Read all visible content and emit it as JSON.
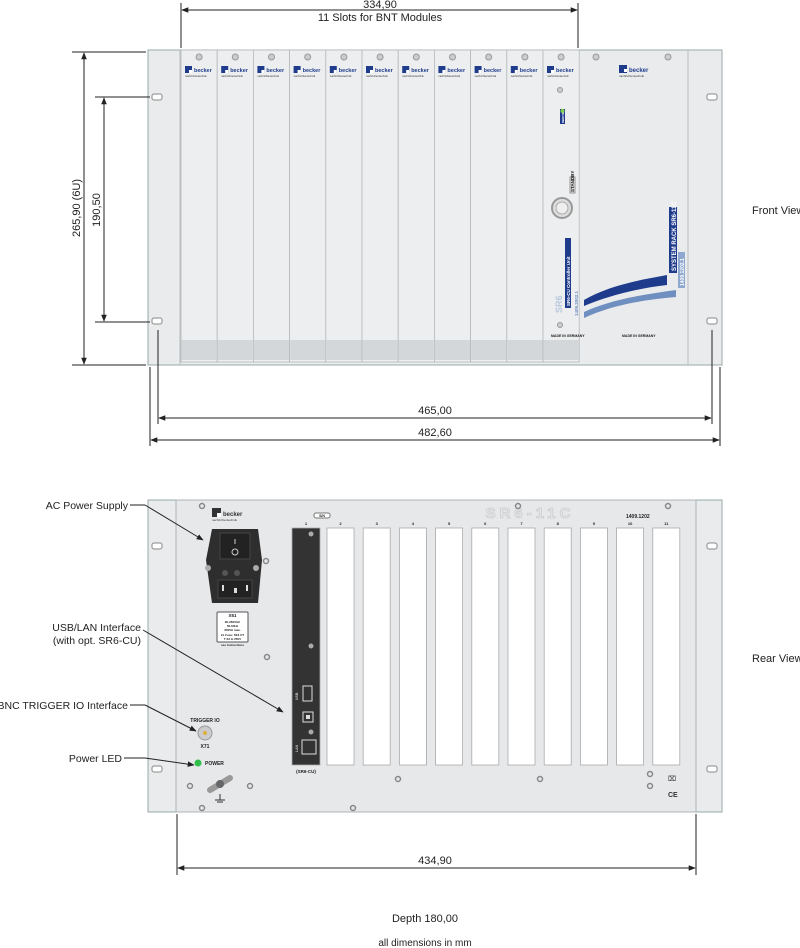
{
  "front": {
    "view_label": "Front View",
    "slots_width": "334,90",
    "slots_caption": "11 Slots for BNT Modules",
    "height_total": "265,90 (6U)",
    "height_mount": "190,50",
    "width_mount": "465,00",
    "width_total": "482,60",
    "logo_name": "becker",
    "logo_sub": "nachrichtentechnik",
    "controller": {
      "standby_label": "STANDBY",
      "model_label": "SR6",
      "unit_label": "SR6-CU  Controller Unit",
      "part_number": "1409.2002.1",
      "made_in": "MADE IN GERMANY",
      "status_label": "REMOTE"
    },
    "rack_panel": {
      "title": "SYSTEM RACK  SR6-11C",
      "part_number": "1409.1202.1",
      "made_in": "MADE IN GERMANY"
    }
  },
  "rear": {
    "view_label": "Rear View",
    "model_label": "SR6-11C",
    "part_number": "1409.1202",
    "sn_label": "S/N",
    "slot_numbers": [
      "1",
      "2",
      "3",
      "4",
      "5",
      "6",
      "7",
      "8",
      "9",
      "10",
      "11"
    ],
    "cu_label": "(SR6-CU)",
    "usb_label": "USB",
    "lan_label": "LAN",
    "x71_label": "X71",
    "trigger_label": "TRIGGER IO",
    "power_label": "POWER",
    "psu_label_title": "X51",
    "psu_label_lines": [
      "90-260VAC",
      "50-60Hz",
      "300VA max.",
      "2x Fuse: 5E3 UT",
      "T 6A H 250V"
    ],
    "psu_note": "see instructions",
    "ce_mark": "CE",
    "width": "434,90",
    "callouts": {
      "ac_power": "AC Power Supply",
      "usb_lan": "USB/LAN Interface",
      "usb_lan_note": "(with opt. SR6-CU)",
      "bnc": "BNC TRIGGER IO Interface",
      "power_led": "Power LED"
    }
  },
  "depth": "Depth 180,00",
  "units_note": "all dimensions in mm",
  "colors": {
    "panel": "#e9ebec",
    "brand_blue": "#1f3c8c",
    "light_blue": "#6f8fc0",
    "dark_module": "#333333",
    "led_green": "#2fbf4a"
  }
}
